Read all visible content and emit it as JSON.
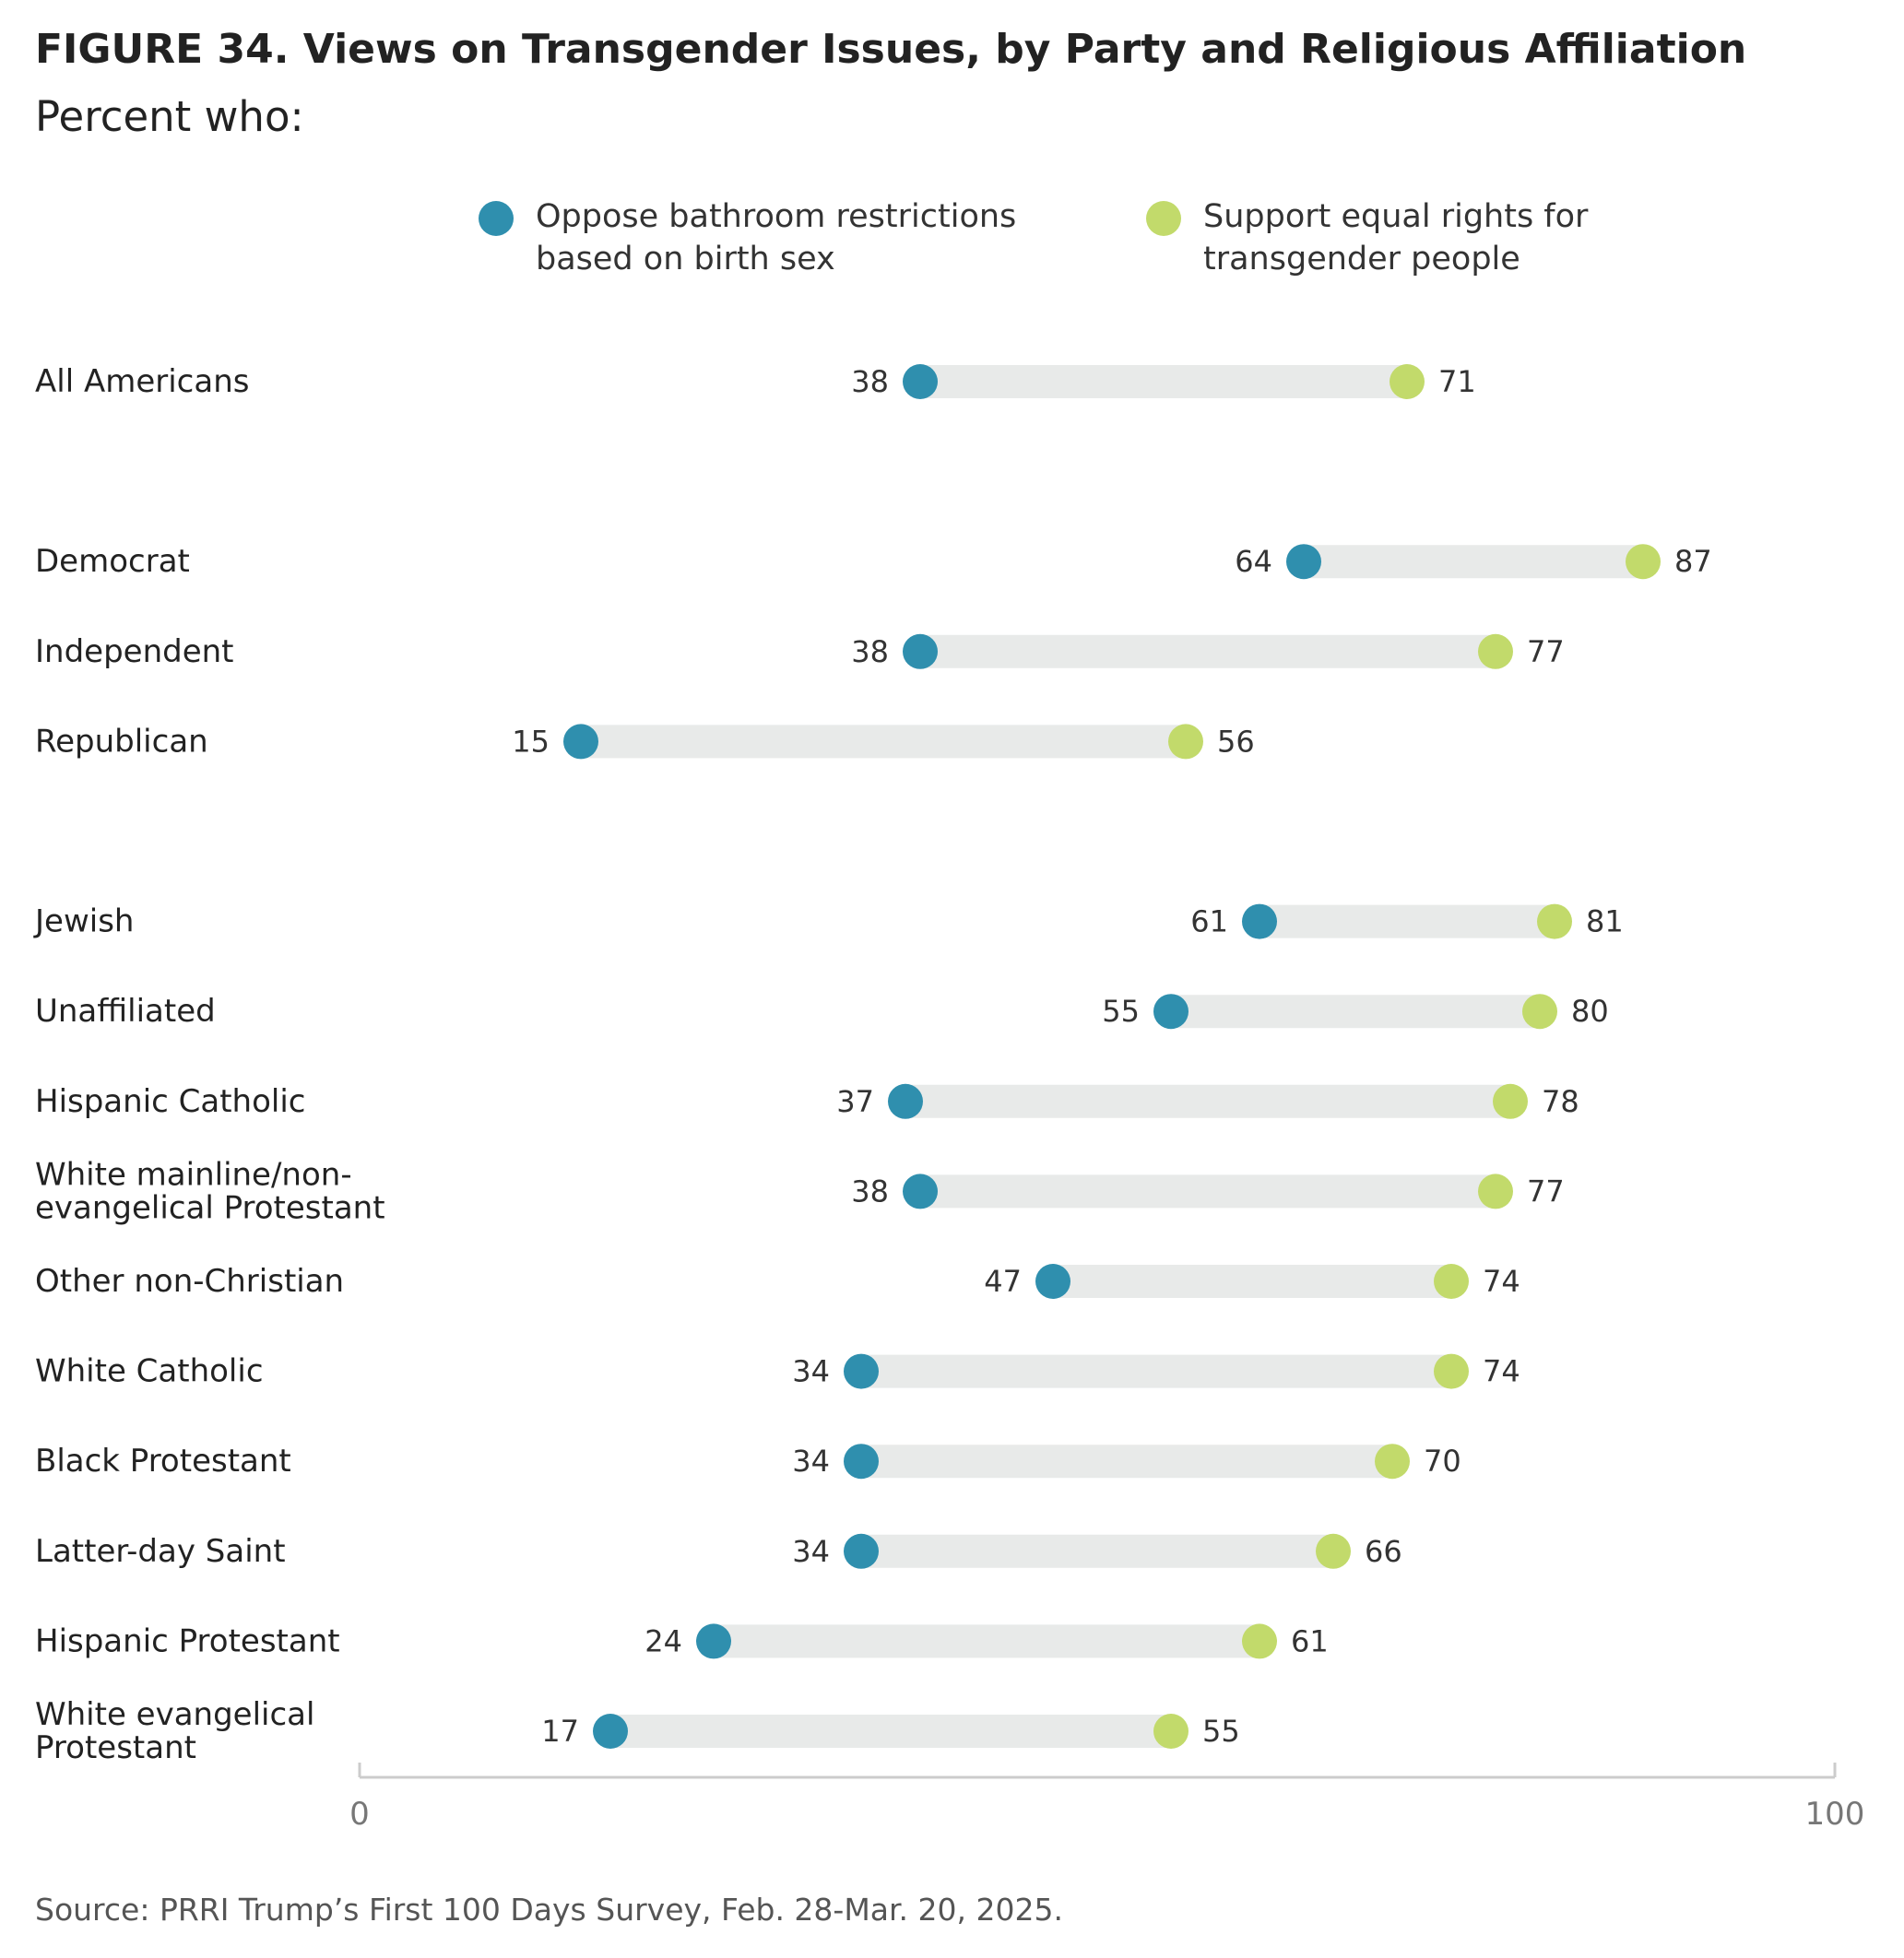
{
  "title": "FIGURE 34.  Views on Transgender Issues, by Party and Religious Affiliation",
  "subtitle": "Percent who:",
  "source": "Source: PRRI Trump’s First 100 Days Survey, Feb. 28-Mar. 20, 2025.",
  "colors": {
    "oppose": "#2f8fae",
    "support": "#c2da6b",
    "bar": "#e8eae9",
    "axis": "#cccccc"
  },
  "legend": [
    {
      "lines": [
        "Oppose bathroom restrictions",
        "based on birth sex"
      ],
      "color": "#2f8fae"
    },
    {
      "lines": [
        "Support equal rights for",
        "transgender people"
      ],
      "color": "#c2da6b"
    }
  ],
  "chart_data": {
    "type": "dumbbell",
    "xlim": [
      0,
      100
    ],
    "x_ticks": [
      "0",
      "100"
    ],
    "series": [
      {
        "name": "Oppose bathroom restrictions based on birth sex",
        "key": "oppose"
      },
      {
        "name": "Support equal rights for transgender people",
        "key": "support"
      }
    ],
    "groups": [
      {
        "rows": [
          {
            "label": [
              "All Americans"
            ],
            "oppose": 38,
            "support": 71
          }
        ]
      },
      {
        "rows": [
          {
            "label": [
              "Democrat"
            ],
            "oppose": 64,
            "support": 87
          },
          {
            "label": [
              "Independent"
            ],
            "oppose": 38,
            "support": 77
          },
          {
            "label": [
              "Republican"
            ],
            "oppose": 15,
            "support": 56
          }
        ]
      },
      {
        "rows": [
          {
            "label": [
              "Jewish"
            ],
            "oppose": 61,
            "support": 81
          },
          {
            "label": [
              "Unaffiliated"
            ],
            "oppose": 55,
            "support": 80
          },
          {
            "label": [
              "Hispanic Catholic"
            ],
            "oppose": 37,
            "support": 78
          },
          {
            "label": [
              "White mainline/non-",
              "evangelical Protestant"
            ],
            "oppose": 38,
            "support": 77
          },
          {
            "label": [
              "Other non-Christian"
            ],
            "oppose": 47,
            "support": 74
          },
          {
            "label": [
              "White Catholic"
            ],
            "oppose": 34,
            "support": 74
          },
          {
            "label": [
              "Black Protestant"
            ],
            "oppose": 34,
            "support": 70
          },
          {
            "label": [
              "Latter-day Saint"
            ],
            "oppose": 34,
            "support": 66
          },
          {
            "label": [
              "Hispanic Protestant"
            ],
            "oppose": 24,
            "support": 61
          },
          {
            "label": [
              "White evangelical",
              "Protestant"
            ],
            "oppose": 17,
            "support": 55
          }
        ]
      }
    ]
  }
}
